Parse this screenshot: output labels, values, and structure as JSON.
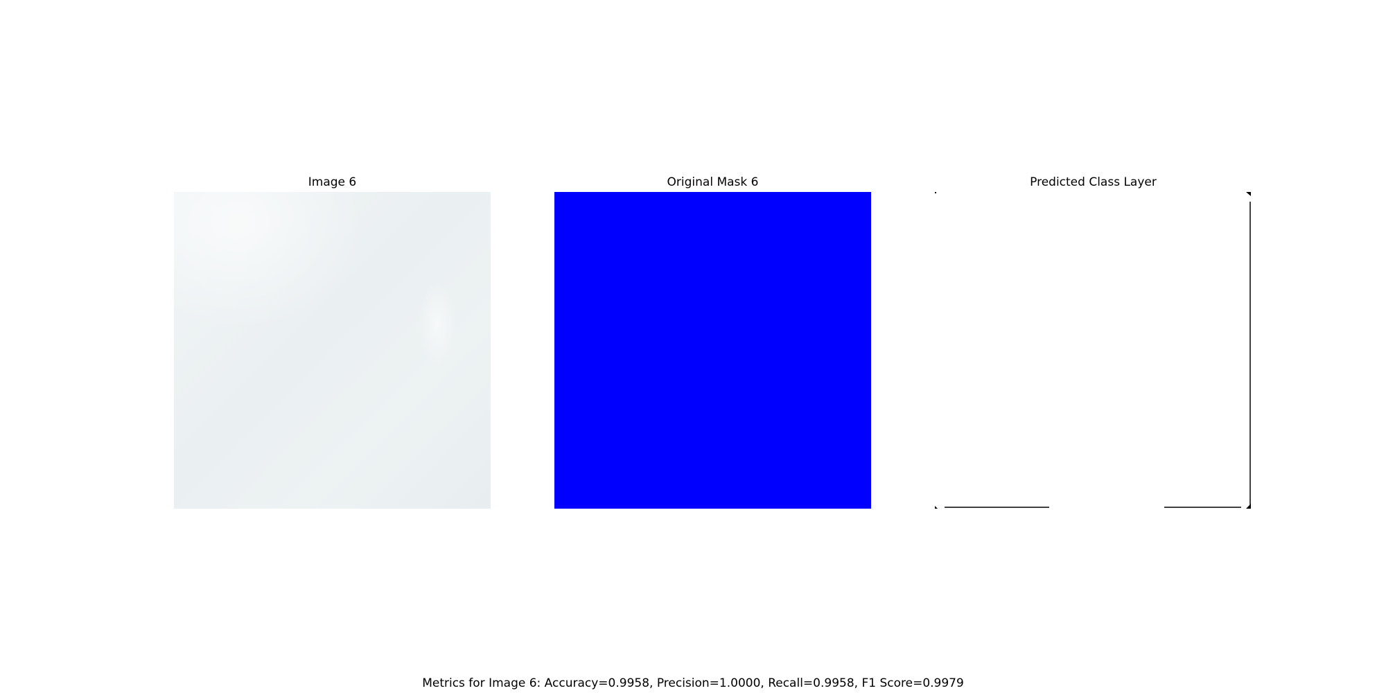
{
  "panels": [
    {
      "title": "Image 6"
    },
    {
      "title": "Original Mask 6"
    },
    {
      "title": "Predicted Class Layer"
    }
  ],
  "colors": {
    "mask": "#0000ff",
    "background": "#ffffff",
    "contour": "#000000"
  },
  "metrics_text": "Metrics for Image 6: Accuracy=0.9958, Precision=1.0000, Recall=0.9958, F1 Score=0.9979"
}
